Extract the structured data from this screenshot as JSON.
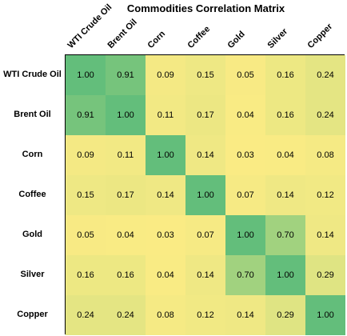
{
  "chart_data": {
    "type": "heatmap",
    "title": "Commodities Correlation Matrix",
    "rows": [
      "WTI Crude Oil",
      "Brent Oil",
      "Corn",
      "Coffee",
      "Gold",
      "Silver",
      "Copper"
    ],
    "columns": [
      "WTI Crude Oil",
      "Brent Oil",
      "Corn",
      "Coffee",
      "Gold",
      "Silver",
      "Copper"
    ],
    "values": [
      [
        1.0,
        0.91,
        0.09,
        0.15,
        0.05,
        0.16,
        0.24
      ],
      [
        0.91,
        1.0,
        0.11,
        0.17,
        0.04,
        0.16,
        0.24
      ],
      [
        0.09,
        0.11,
        1.0,
        0.14,
        0.03,
        0.04,
        0.08
      ],
      [
        0.15,
        0.17,
        0.14,
        1.0,
        0.07,
        0.14,
        0.12
      ],
      [
        0.05,
        0.04,
        0.03,
        0.07,
        1.0,
        0.7,
        0.14
      ],
      [
        0.16,
        0.16,
        0.04,
        0.14,
        0.7,
        1.0,
        0.29
      ],
      [
        0.24,
        0.24,
        0.08,
        0.12,
        0.14,
        0.29,
        1.0
      ]
    ],
    "value_format": "2 decimals",
    "color_scale": {
      "low": "#FAEB84",
      "mid": "#C8DE82",
      "high": "#63BE7B"
    },
    "grid": true,
    "legend": "none"
  }
}
